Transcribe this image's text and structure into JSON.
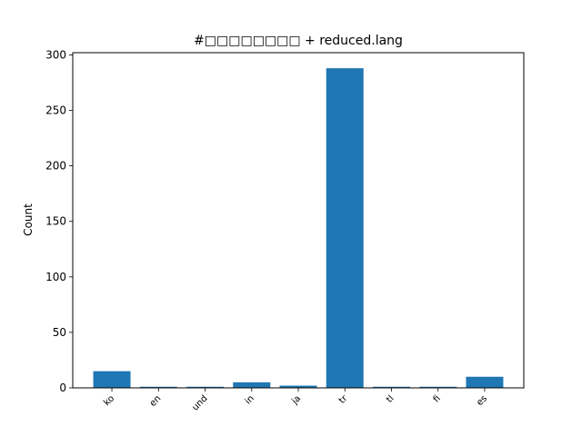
{
  "chart_data": {
    "type": "bar",
    "title": "#□□□□□□□□ + reduced.lang",
    "xlabel": "",
    "ylabel": "Count",
    "categories": [
      "ko",
      "en",
      "und",
      "in",
      "ja",
      "tr",
      "tl",
      "fi",
      "es"
    ],
    "values": [
      15,
      1,
      1,
      5,
      2,
      288,
      1,
      1,
      10
    ],
    "ylim": [
      0,
      302
    ],
    "yticks": [
      0,
      50,
      100,
      150,
      200,
      250,
      300
    ],
    "bar_color": "#1f77b4",
    "grid": false,
    "legend": "none",
    "xtick_rotation": -45
  }
}
